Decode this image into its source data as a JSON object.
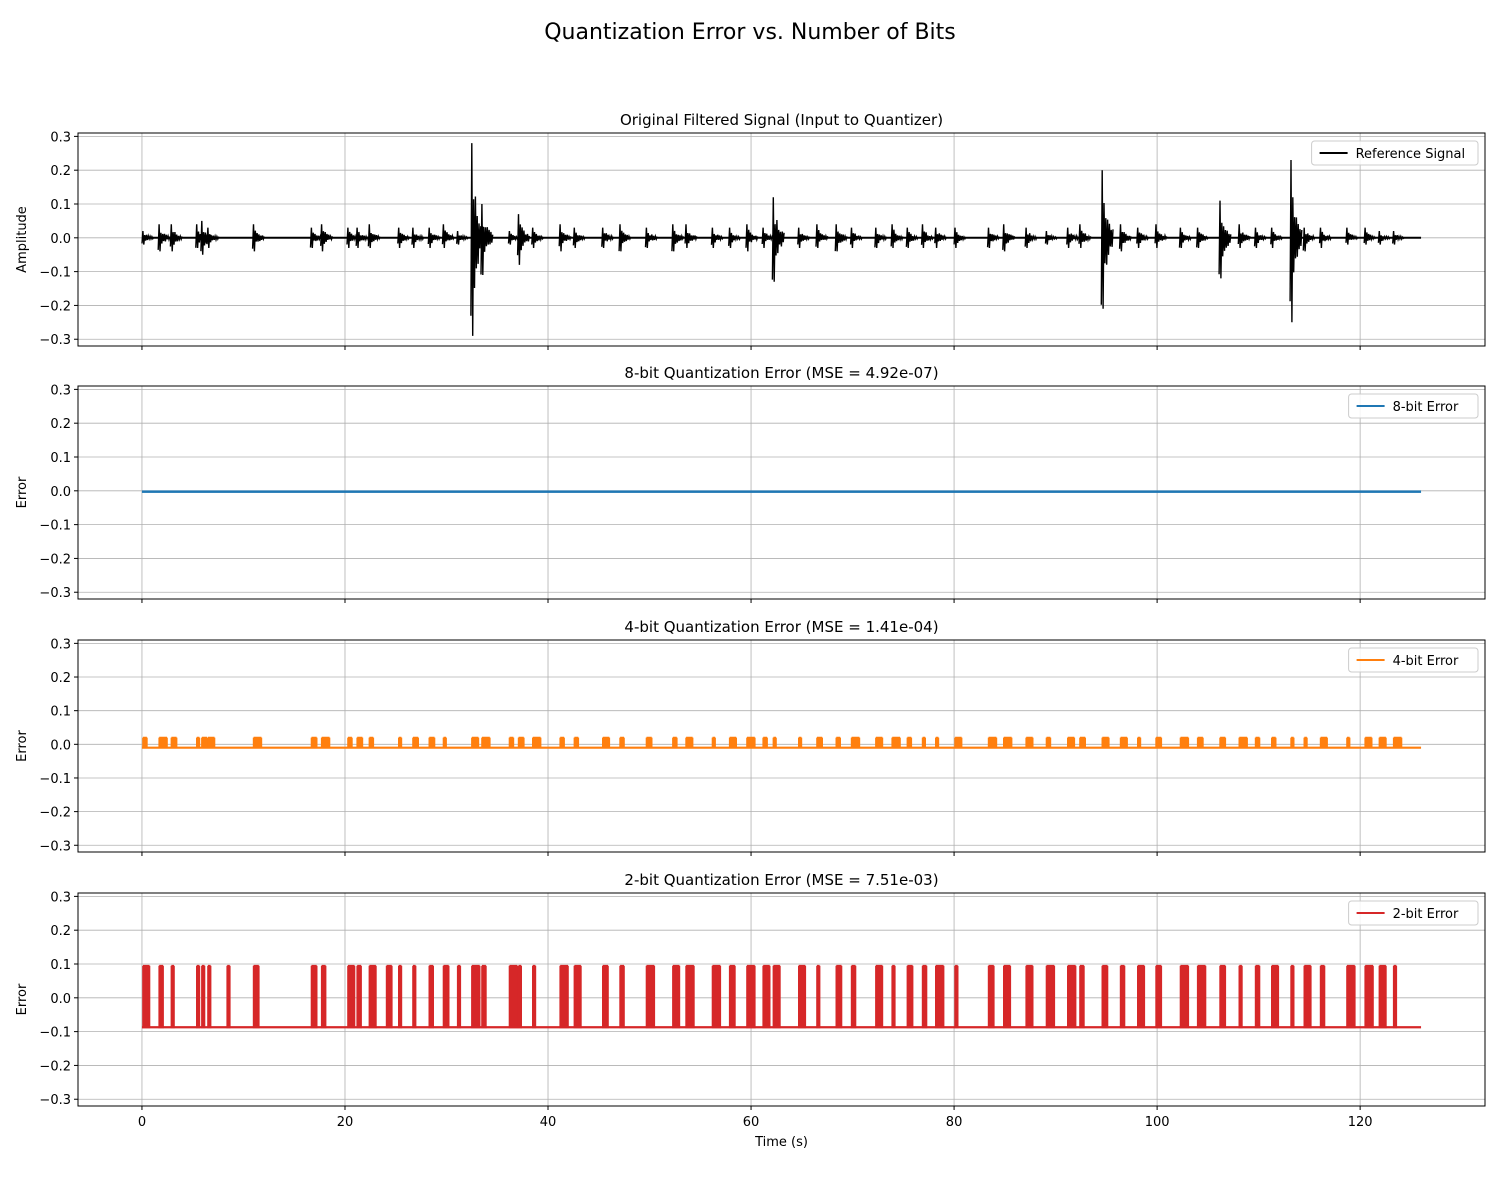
{
  "figure": {
    "title": "Quantization Error vs. Number of Bits"
  },
  "chart_data": [
    {
      "type": "line",
      "title": "Original Filtered Signal (Input to Quantizer)",
      "xlabel": "",
      "ylabel": "Amplitude",
      "xlim": [
        -6.3,
        132.3
      ],
      "ylim": [
        -0.32,
        0.31
      ],
      "yticks": [
        0.3,
        0.2,
        0.1,
        0.0,
        -0.1,
        -0.2,
        -0.3
      ],
      "xticks": [
        0,
        20,
        40,
        60,
        80,
        100,
        120
      ],
      "grid": true,
      "legend": "top-right",
      "color": "#000000",
      "series": [
        {
          "name": "Reference Signal",
          "kind": "bursts",
          "x_range": [
            0,
            126
          ],
          "baseline": 0.0,
          "typical_amplitude": 0.04,
          "bursts": [
            [
              0.2,
              0.02,
              -0.02
            ],
            [
              1.8,
              0.04,
              -0.04
            ],
            [
              3.0,
              0.04,
              -0.04
            ],
            [
              5.5,
              0.04,
              -0.03
            ],
            [
              6.0,
              0.05,
              -0.05
            ],
            [
              6.6,
              0.03,
              -0.03
            ],
            [
              11.1,
              0.04,
              -0.04
            ],
            [
              16.8,
              0.03,
              -0.03
            ],
            [
              17.8,
              0.04,
              -0.04
            ],
            [
              20.4,
              0.03,
              -0.03
            ],
            [
              21.3,
              0.03,
              -0.03
            ],
            [
              22.5,
              0.04,
              -0.03
            ],
            [
              25.4,
              0.03,
              -0.03
            ],
            [
              26.8,
              0.03,
              -0.03
            ],
            [
              28.4,
              0.03,
              -0.03
            ],
            [
              29.8,
              0.04,
              -0.03
            ],
            [
              31.2,
              0.02,
              -0.02
            ],
            [
              32.6,
              0.28,
              -0.29
            ],
            [
              33.6,
              0.1,
              -0.11
            ],
            [
              36.3,
              0.02,
              -0.02
            ],
            [
              37.2,
              0.07,
              -0.08
            ],
            [
              38.6,
              0.03,
              -0.03
            ],
            [
              41.3,
              0.04,
              -0.04
            ],
            [
              42.7,
              0.03,
              -0.03
            ],
            [
              45.5,
              0.03,
              -0.03
            ],
            [
              47.2,
              0.04,
              -0.04
            ],
            [
              49.8,
              0.03,
              -0.03
            ],
            [
              52.4,
              0.04,
              -0.04
            ],
            [
              53.7,
              0.04,
              -0.03
            ],
            [
              56.3,
              0.03,
              -0.03
            ],
            [
              58.0,
              0.03,
              -0.03
            ],
            [
              59.7,
              0.04,
              -0.04
            ],
            [
              61.3,
              0.03,
              -0.03
            ],
            [
              62.3,
              0.12,
              -0.13
            ],
            [
              64.8,
              0.03,
              -0.03
            ],
            [
              66.6,
              0.04,
              -0.03
            ],
            [
              68.5,
              0.04,
              -0.04
            ],
            [
              70.0,
              0.03,
              -0.03
            ],
            [
              72.4,
              0.03,
              -0.03
            ],
            [
              74.0,
              0.04,
              -0.03
            ],
            [
              75.5,
              0.03,
              -0.03
            ],
            [
              77.0,
              0.04,
              -0.03
            ],
            [
              78.3,
              0.03,
              -0.03
            ],
            [
              80.2,
              0.03,
              -0.03
            ],
            [
              83.5,
              0.03,
              -0.03
            ],
            [
              85.0,
              0.04,
              -0.04
            ],
            [
              87.2,
              0.03,
              -0.03
            ],
            [
              89.2,
              0.02,
              -0.02
            ],
            [
              91.3,
              0.03,
              -0.03
            ],
            [
              92.5,
              0.04,
              -0.03
            ],
            [
              94.7,
              0.2,
              -0.21
            ],
            [
              96.5,
              0.04,
              -0.04
            ],
            [
              98.2,
              0.03,
              -0.03
            ],
            [
              100.0,
              0.04,
              -0.03
            ],
            [
              102.4,
              0.03,
              -0.03
            ],
            [
              104.1,
              0.03,
              -0.03
            ],
            [
              106.3,
              0.11,
              -0.12
            ],
            [
              108.2,
              0.04,
              -0.03
            ],
            [
              109.8,
              0.03,
              -0.03
            ],
            [
              111.4,
              0.03,
              -0.03
            ],
            [
              113.3,
              0.23,
              -0.25
            ],
            [
              114.6,
              0.03,
              -0.04
            ],
            [
              116.2,
              0.03,
              -0.03
            ],
            [
              118.8,
              0.03,
              -0.02
            ],
            [
              120.6,
              0.03,
              -0.02
            ],
            [
              122.0,
              0.02,
              -0.02
            ],
            [
              123.4,
              0.02,
              -0.02
            ]
          ]
        }
      ]
    },
    {
      "type": "line",
      "title": "8-bit Quantization Error (MSE = 4.92e-07)",
      "xlabel": "",
      "ylabel": "Error",
      "xlim": [
        -6.3,
        132.3
      ],
      "ylim": [
        -0.32,
        0.31
      ],
      "yticks": [
        0.3,
        0.2,
        0.1,
        0.0,
        -0.1,
        -0.2,
        -0.3
      ],
      "xticks": [
        0,
        20,
        40,
        60,
        80,
        100,
        120
      ],
      "grid": true,
      "legend": "top-right",
      "color": "#1f77b4",
      "series": [
        {
          "name": "8-bit Error",
          "kind": "band",
          "x_range": [
            0,
            126
          ],
          "low": -0.0012,
          "high": 0.0012
        }
      ]
    },
    {
      "type": "line",
      "title": "4-bit Quantization Error (MSE = 1.41e-04)",
      "xlabel": "",
      "ylabel": "Error",
      "xlim": [
        -6.3,
        132.3
      ],
      "ylim": [
        -0.32,
        0.31
      ],
      "yticks": [
        0.3,
        0.2,
        0.1,
        0.0,
        -0.1,
        -0.2,
        -0.3
      ],
      "xticks": [
        0,
        20,
        40,
        60,
        80,
        100,
        120
      ],
      "grid": true,
      "legend": "top-right",
      "color": "#ff7f0e",
      "series": [
        {
          "name": "4-bit Error",
          "kind": "steps",
          "x_range": [
            0,
            126
          ],
          "baseline": -0.01,
          "low": -0.01,
          "high": 0.02,
          "burst_times": [
            0.2,
            1.8,
            3.0,
            5.5,
            6.0,
            6.6,
            11.1,
            16.8,
            17.8,
            20.4,
            21.3,
            22.5,
            25.4,
            26.8,
            28.4,
            29.8,
            32.6,
            33.6,
            36.3,
            37.2,
            38.6,
            41.3,
            42.7,
            45.5,
            47.2,
            49.8,
            52.4,
            53.7,
            56.3,
            58.0,
            59.7,
            61.3,
            62.3,
            64.8,
            66.6,
            68.5,
            70.0,
            72.4,
            74.0,
            75.5,
            77.0,
            78.3,
            80.2,
            83.5,
            85.0,
            87.2,
            89.2,
            91.3,
            92.5,
            94.7,
            96.5,
            98.2,
            100.0,
            102.4,
            104.1,
            106.3,
            108.2,
            109.8,
            111.4,
            113.3,
            114.6,
            116.2,
            118.8,
            120.6,
            122.0,
            123.4
          ]
        }
      ]
    },
    {
      "type": "line",
      "title": "2-bit Quantization Error (MSE = 7.51e-03)",
      "xlabel": "Time (s)",
      "ylabel": "Error",
      "xlim": [
        -6.3,
        132.3
      ],
      "ylim": [
        -0.32,
        0.31
      ],
      "yticks": [
        0.3,
        0.2,
        0.1,
        0.0,
        -0.1,
        -0.2,
        -0.3
      ],
      "xticks": [
        0,
        20,
        40,
        60,
        80,
        100,
        120
      ],
      "grid": true,
      "legend": "top-right",
      "color": "#d62728",
      "series": [
        {
          "name": "2-bit Error",
          "kind": "steps",
          "x_range": [
            0,
            126
          ],
          "baseline": -0.087,
          "low": -0.09,
          "high": 0.095,
          "burst_times": [
            0.2,
            1.8,
            3.0,
            5.5,
            6.0,
            6.6,
            8.5,
            11.1,
            16.8,
            17.8,
            20.4,
            21.3,
            22.5,
            24.2,
            25.4,
            26.8,
            28.4,
            29.8,
            31.2,
            32.6,
            33.6,
            36.3,
            37.2,
            38.6,
            41.3,
            42.7,
            45.5,
            47.2,
            49.8,
            52.4,
            53.7,
            56.3,
            58.0,
            59.7,
            61.3,
            62.3,
            64.8,
            66.6,
            68.5,
            70.0,
            72.4,
            74.0,
            75.5,
            77.0,
            78.3,
            80.2,
            83.5,
            85.0,
            87.2,
            89.2,
            91.3,
            92.5,
            94.7,
            96.5,
            98.2,
            100.0,
            102.4,
            104.1,
            106.3,
            108.2,
            109.8,
            111.4,
            113.3,
            114.6,
            116.2,
            118.8,
            120.6,
            122.0,
            123.4
          ]
        }
      ]
    }
  ]
}
